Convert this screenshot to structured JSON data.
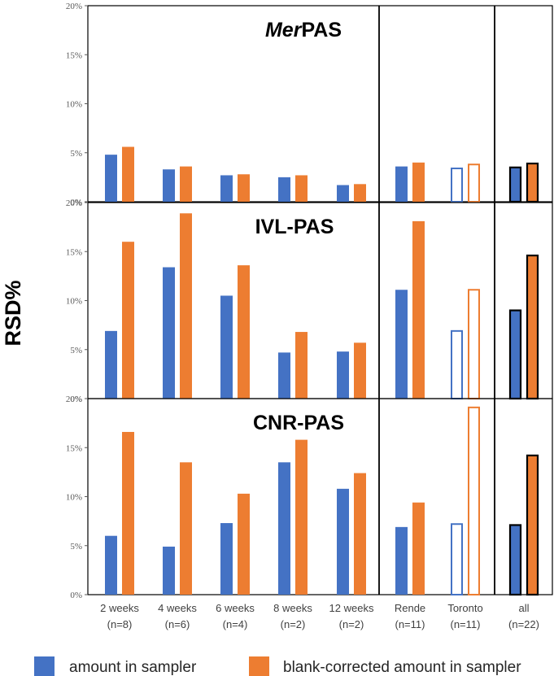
{
  "chart_data": {
    "type": "bar",
    "ylabel": "RSD%",
    "y_ticks": [
      "0%",
      "5%",
      "10%",
      "15%",
      "20%"
    ],
    "colors": {
      "amount": "#4472C4",
      "blank_corrected": "#ED7D31"
    },
    "categories": [
      {
        "line1": "2 weeks",
        "line2": "(n=8)"
      },
      {
        "line1": "4 weeks",
        "line2": "(n=6)"
      },
      {
        "line1": "6 weeks",
        "line2": "(n=4)"
      },
      {
        "line1": "8 weeks",
        "line2": "(n=2)"
      },
      {
        "line1": "12 weeks",
        "line2": "(n=2)"
      },
      {
        "line1": "Rende",
        "line2": "(n=11)"
      },
      {
        "line1": "Toronto",
        "line2": "(n=11)"
      },
      {
        "line1": "all",
        "line2": "(n=22)"
      }
    ],
    "bar_styles": [
      "solid",
      "solid",
      "solid",
      "solid",
      "solid",
      "solid",
      "hollow",
      "solid-outlined"
    ],
    "legend": [
      {
        "label": "amount in sampler",
        "color": "#4472C4"
      },
      {
        "label": "blank-corrected amount in sampler",
        "color": "#ED7D31"
      }
    ],
    "panels": [
      {
        "title_italic": "Mer",
        "title_rest": "PAS",
        "ylim": [
          0,
          20
        ],
        "series": [
          {
            "name": "amount in sampler",
            "values": [
              4.8,
              3.3,
              2.7,
              2.5,
              1.7,
              3.6,
              3.4,
              3.5
            ]
          },
          {
            "name": "blank-corrected amount in sampler",
            "values": [
              5.6,
              3.6,
              2.8,
              2.7,
              1.8,
              4.0,
              3.8,
              3.9
            ]
          }
        ]
      },
      {
        "title_italic": "",
        "title_rest": "IVL-PAS",
        "ylim": [
          0,
          20
        ],
        "series": [
          {
            "name": "amount in sampler",
            "values": [
              6.9,
              13.4,
              10.5,
              4.7,
              4.8,
              11.1,
              6.9,
              9.0
            ]
          },
          {
            "name": "blank-corrected amount in sampler",
            "values": [
              16.0,
              18.9,
              13.6,
              6.8,
              5.7,
              18.1,
              11.1,
              14.6
            ]
          }
        ]
      },
      {
        "title_italic": "",
        "title_rest": "CNR-PAS",
        "ylim": [
          0,
          20
        ],
        "series": [
          {
            "name": "amount in sampler",
            "values": [
              6.0,
              4.9,
              7.3,
              13.5,
              10.8,
              6.9,
              7.2,
              7.1
            ]
          },
          {
            "name": "blank-corrected amount in sampler",
            "values": [
              16.6,
              13.5,
              10.3,
              15.8,
              12.4,
              9.4,
              19.1,
              14.2
            ]
          }
        ]
      }
    ]
  }
}
